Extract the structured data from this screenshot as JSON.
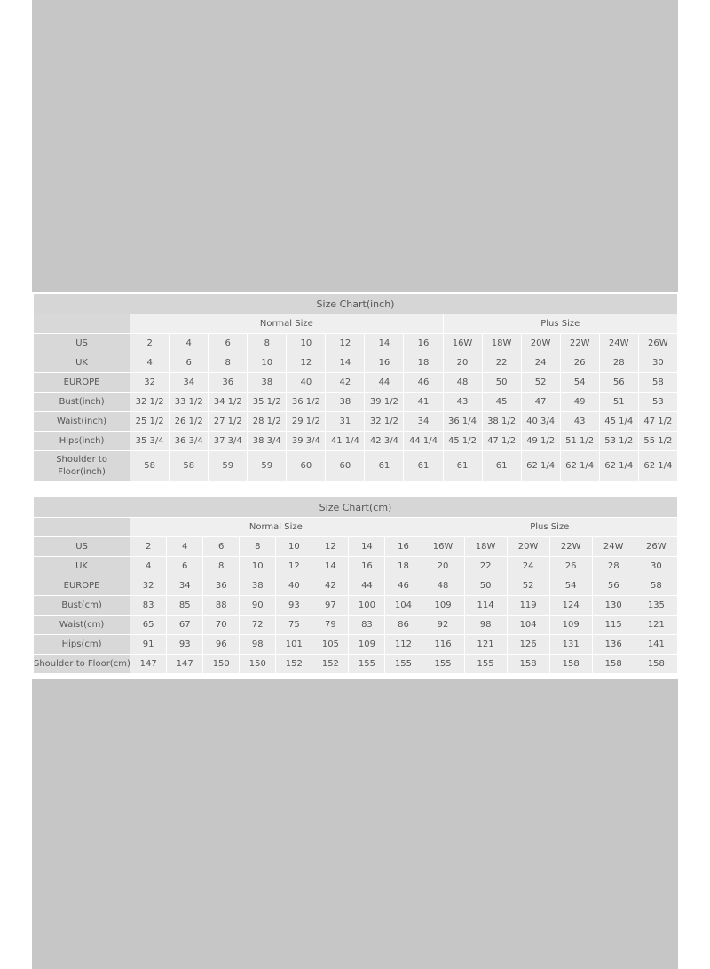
{
  "tables": [
    {
      "title": "Size Chart(inch)",
      "groups": [
        "Normal Size",
        "Plus Size"
      ],
      "rows": [
        {
          "label": "US",
          "values": [
            "2",
            "4",
            "6",
            "8",
            "10",
            "12",
            "14",
            "16",
            "16W",
            "18W",
            "20W",
            "22W",
            "24W",
            "26W"
          ]
        },
        {
          "label": "UK",
          "values": [
            "4",
            "6",
            "8",
            "10",
            "12",
            "14",
            "16",
            "18",
            "20",
            "22",
            "24",
            "26",
            "28",
            "30"
          ]
        },
        {
          "label": "EUROPE",
          "values": [
            "32",
            "34",
            "36",
            "38",
            "40",
            "42",
            "44",
            "46",
            "48",
            "50",
            "52",
            "54",
            "56",
            "58"
          ]
        },
        {
          "label": "Bust(inch)",
          "values": [
            "32 1/2",
            "33 1/2",
            "34 1/2",
            "35 1/2",
            "36 1/2",
            "38",
            "39 1/2",
            "41",
            "43",
            "45",
            "47",
            "49",
            "51",
            "53"
          ]
        },
        {
          "label": "Waist(inch)",
          "values": [
            "25 1/2",
            "26 1/2",
            "27 1/2",
            "28 1/2",
            "29 1/2",
            "31",
            "32 1/2",
            "34",
            "36 1/4",
            "38 1/2",
            "40 3/4",
            "43",
            "45 1/4",
            "47 1/2"
          ]
        },
        {
          "label": "Hips(inch)",
          "values": [
            "35 3/4",
            "36 3/4",
            "37 3/4",
            "38 3/4",
            "39 3/4",
            "41 1/4",
            "42 3/4",
            "44 1/4",
            "45 1/2",
            "47 1/2",
            "49 1/2",
            "51 1/2",
            "53 1/2",
            "55 1/2"
          ]
        },
        {
          "label": "Shoulder to Floor(inch)",
          "values": [
            "58",
            "58",
            "59",
            "59",
            "60",
            "60",
            "61",
            "61",
            "61",
            "61",
            "62 1/4",
            "62 1/4",
            "62 1/4",
            "62 1/4"
          ]
        }
      ]
    },
    {
      "title": "Size Chart(cm)",
      "groups": [
        "Normal Size",
        "Plus Size"
      ],
      "rows": [
        {
          "label": "US",
          "values": [
            "2",
            "4",
            "6",
            "8",
            "10",
            "12",
            "14",
            "16",
            "16W",
            "18W",
            "20W",
            "22W",
            "24W",
            "26W"
          ]
        },
        {
          "label": "UK",
          "values": [
            "4",
            "6",
            "8",
            "10",
            "12",
            "14",
            "16",
            "18",
            "20",
            "22",
            "24",
            "26",
            "28",
            "30"
          ]
        },
        {
          "label": "EUROPE",
          "values": [
            "32",
            "34",
            "36",
            "38",
            "40",
            "42",
            "44",
            "46",
            "48",
            "50",
            "52",
            "54",
            "56",
            "58"
          ]
        },
        {
          "label": "Bust(cm)",
          "values": [
            "83",
            "85",
            "88",
            "90",
            "93",
            "97",
            "100",
            "104",
            "109",
            "114",
            "119",
            "124",
            "130",
            "135"
          ]
        },
        {
          "label": "Waist(cm)",
          "values": [
            "65",
            "67",
            "70",
            "72",
            "75",
            "79",
            "83",
            "86",
            "92",
            "98",
            "104",
            "109",
            "115",
            "121"
          ]
        },
        {
          "label": "Hips(cm)",
          "values": [
            "91",
            "93",
            "96",
            "98",
            "101",
            "105",
            "109",
            "112",
            "116",
            "121",
            "126",
            "131",
            "136",
            "141"
          ]
        },
        {
          "label": "Shoulder to Floor(cm)",
          "values": [
            "147",
            "147",
            "150",
            "150",
            "152",
            "152",
            "155",
            "155",
            "155",
            "155",
            "158",
            "158",
            "158",
            "158"
          ]
        }
      ]
    }
  ]
}
